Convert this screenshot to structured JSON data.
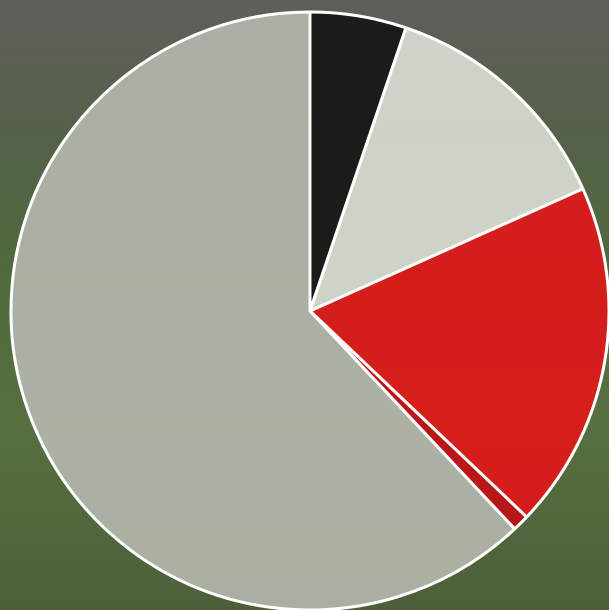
{
  "chart_data": {
    "type": "pie",
    "values": [
      5.2,
      13.1,
      18.8,
      0.9,
      62.0
    ],
    "colors": [
      "#161616",
      "#d8dcd2",
      "#e01818",
      "#c20f14",
      "#b3b6ad"
    ],
    "opacity": 0.92,
    "start_angle": 0,
    "direction": "clockwise"
  }
}
